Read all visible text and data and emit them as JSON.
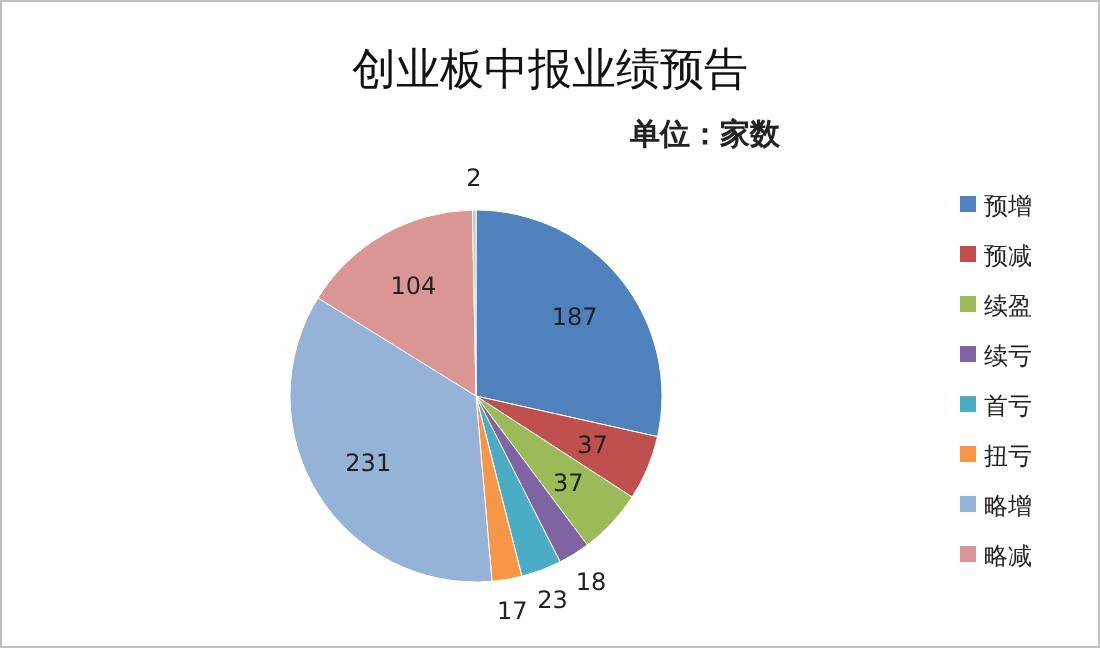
{
  "chart_data": {
    "type": "pie",
    "title": "创业板中报业绩预告",
    "subtitle": "单位：家数",
    "categories": [
      "预增",
      "预减",
      "续盈",
      "续亏",
      "首亏",
      "扭亏",
      "略增",
      "略减",
      null
    ],
    "values": [
      187,
      37,
      37,
      18,
      23,
      17,
      231,
      104,
      2
    ],
    "colors": [
      "#4f81bd",
      "#c0504d",
      "#9bbb59",
      "#8064a2",
      "#4bacc6",
      "#f79646",
      "#95b3d7",
      "#d99694",
      "#c3c9b0"
    ],
    "data_labels": true,
    "legend": "right"
  }
}
